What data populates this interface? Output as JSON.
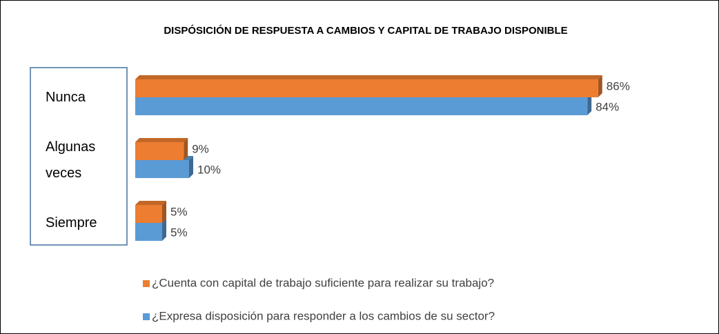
{
  "chart_data": {
    "type": "bar",
    "orientation": "horizontal",
    "title": "DISPÓSICIÓN DE RESPUESTA A CAMBIOS Y CAPITAL DE TRABAJO DISPONIBLE",
    "categories": [
      "Nunca",
      "Algunas veces",
      "Siempre"
    ],
    "series": [
      {
        "name": "¿Cuenta con capital de trabajo suficiente para realizar su trabajo?",
        "color": "#ED7D31",
        "values": [
          86,
          9,
          5
        ],
        "value_labels": [
          "86%",
          "9%",
          "5%"
        ]
      },
      {
        "name": "¿Expresa disposición para responder a los cambios de su sector?",
        "color": "#5B9BD5",
        "values": [
          84,
          10,
          5
        ],
        "value_labels": [
          "84%",
          "10%",
          "5%"
        ]
      }
    ]
  }
}
